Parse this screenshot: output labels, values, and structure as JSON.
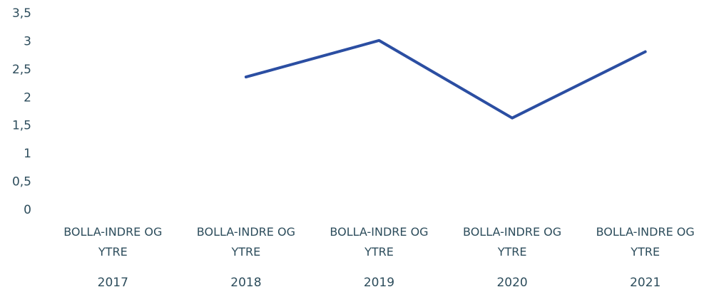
{
  "chart_data": {
    "type": "line",
    "categories": [
      "2017",
      "2018",
      "2019",
      "2020",
      "2021"
    ],
    "category_groups": [
      "BOLLA-INDRE OG YTRE",
      "BOLLA-INDRE OG YTRE",
      "BOLLA-INDRE OG YTRE",
      "BOLLA-INDRE OG YTRE",
      "BOLLA-INDRE OG YTRE"
    ],
    "series": [
      {
        "name": "BOLLA-INDRE OG YTRE",
        "color": "#2b4ea2",
        "values": [
          null,
          2.37,
          3.02,
          1.64,
          2.82
        ]
      }
    ],
    "ylim": [
      0,
      3.5
    ],
    "yticks": [
      0,
      {
        "value": 0.5,
        "label": "0,5"
      },
      1,
      {
        "value": 1.5,
        "label": "1,5"
      },
      2,
      {
        "value": 2.5,
        "label": "2,5"
      },
      3,
      {
        "value": 3.5,
        "label": "3,5"
      }
    ],
    "grid": false,
    "legend": false
  }
}
